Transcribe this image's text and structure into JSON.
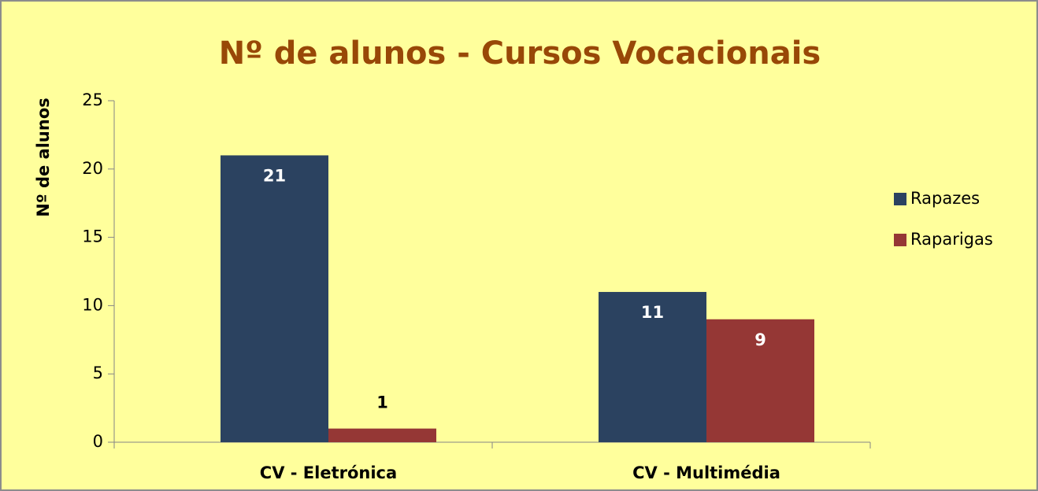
{
  "chart_data": {
    "type": "bar",
    "title": "Nº de alunos - Cursos Vocacionais",
    "y_label": "Nº de alunos",
    "categories": [
      "CV - Eletrónica",
      "CV - Multimédia"
    ],
    "series": [
      {
        "name": "Rapazes",
        "color": "#2b4260",
        "values": [
          21,
          11
        ]
      },
      {
        "name": "Raparigas",
        "color": "#953735",
        "values": [
          1,
          9
        ]
      }
    ],
    "ylim": [
      0,
      25
    ],
    "yticks": [
      0,
      5,
      10,
      15,
      20,
      25
    ],
    "legend": "right"
  }
}
